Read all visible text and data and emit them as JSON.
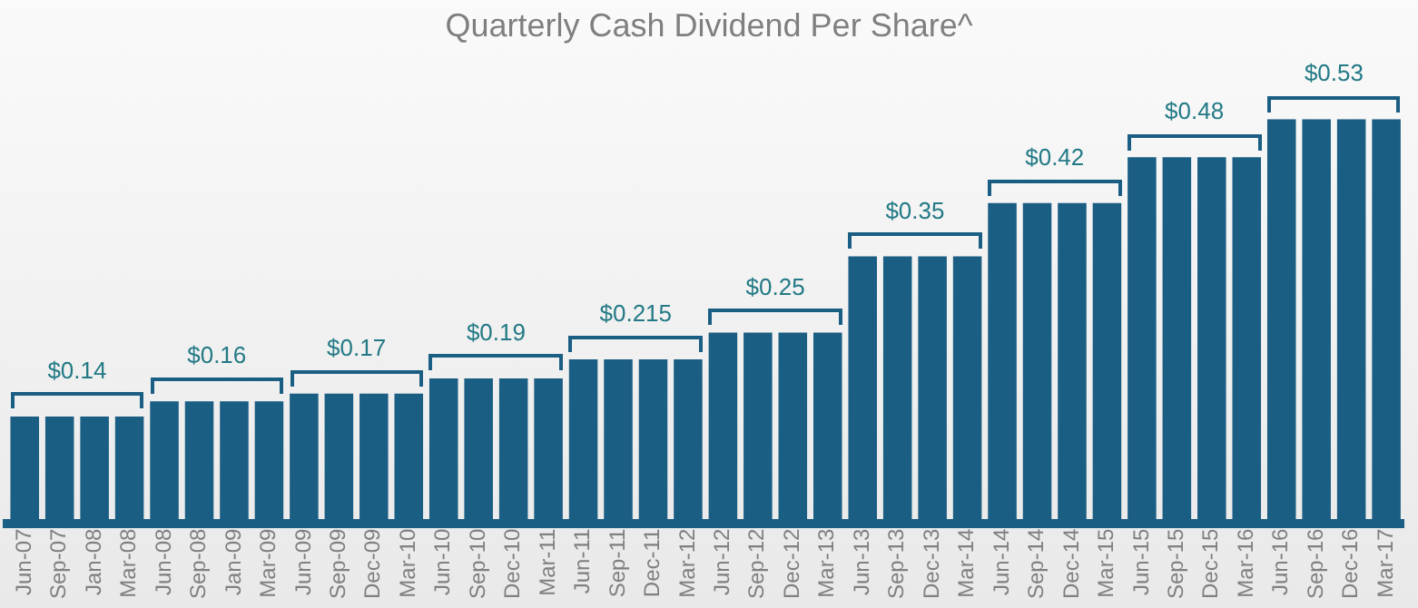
{
  "chart_data": {
    "type": "bar",
    "title": "Quarterly Cash Dividend Per Share^",
    "categories": [
      "Jun-07",
      "Sep-07",
      "Jan-08",
      "Mar-08",
      "Jun-08",
      "Sep-08",
      "Jan-09",
      "Mar-09",
      "Jun-09",
      "Sep-09",
      "Dec-09",
      "Mar-10",
      "Jun-10",
      "Sep-10",
      "Dec-10",
      "Mar-11",
      "Jun-11",
      "Sep-11",
      "Dec-11",
      "Mar-12",
      "Jun-12",
      "Sep-12",
      "Dec-12",
      "Mar-13",
      "Jun-13",
      "Sep-13",
      "Dec-13",
      "Mar-14",
      "Jun-14",
      "Sep-14",
      "Dec-14",
      "Mar-15",
      "Jun-15",
      "Sep-15",
      "Dec-15",
      "Mar-16",
      "Jun-16",
      "Sep-16",
      "Dec-16",
      "Mar-17"
    ],
    "values": [
      0.14,
      0.14,
      0.14,
      0.14,
      0.16,
      0.16,
      0.16,
      0.16,
      0.17,
      0.17,
      0.17,
      0.17,
      0.19,
      0.19,
      0.19,
      0.19,
      0.215,
      0.215,
      0.215,
      0.215,
      0.25,
      0.25,
      0.25,
      0.25,
      0.35,
      0.35,
      0.35,
      0.35,
      0.42,
      0.42,
      0.42,
      0.42,
      0.48,
      0.48,
      0.48,
      0.48,
      0.53,
      0.53,
      0.53,
      0.53
    ],
    "value_labels": [
      null,
      "$0.14",
      null,
      null,
      null,
      "$0.16",
      null,
      null,
      null,
      "$0.17",
      null,
      null,
      null,
      "$0.19",
      null,
      null,
      null,
      "$0.215",
      null,
      null,
      null,
      "$0.25",
      null,
      null,
      null,
      "$0.35",
      null,
      null,
      null,
      "$0.42",
      null,
      null,
      null,
      "$0.48",
      null,
      null,
      null,
      "$0.53",
      null,
      null
    ],
    "color": "#1b5e84",
    "grid": false,
    "legend": false
  }
}
